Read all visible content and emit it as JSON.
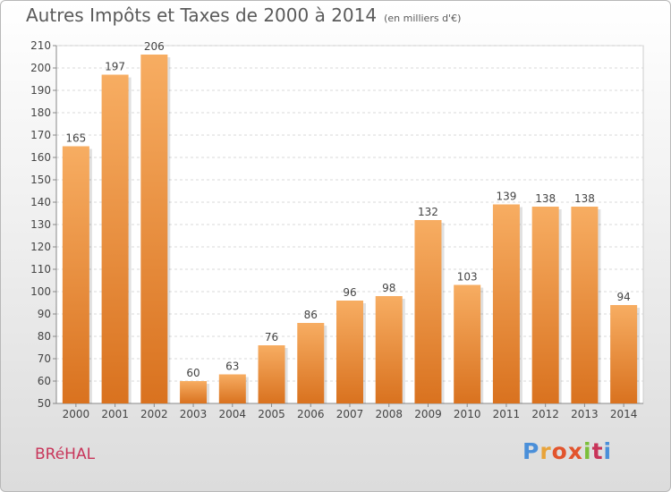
{
  "chart_data": {
    "type": "bar",
    "title": "Autres Impôts et Taxes de 2000 à 2014",
    "subtitle": "(en milliers d'€)",
    "categories": [
      "2000",
      "2001",
      "2002",
      "2003",
      "2004",
      "2005",
      "2006",
      "2007",
      "2008",
      "2009",
      "2010",
      "2011",
      "2012",
      "2013",
      "2014"
    ],
    "values": [
      165,
      197,
      206,
      60,
      63,
      76,
      86,
      96,
      98,
      132,
      103,
      139,
      138,
      138,
      94
    ],
    "ylim": [
      50,
      210
    ],
    "yticks": [
      50,
      60,
      70,
      80,
      90,
      100,
      110,
      120,
      130,
      140,
      150,
      160,
      170,
      180,
      190,
      200,
      210
    ],
    "grid": true,
    "colors": {
      "bar": "#f39a45",
      "bar_light": "#f7ad62",
      "bar_dark": "#d9721f",
      "grid": "#d8d8d8",
      "text": "#444444"
    }
  },
  "commune": "BRéHAL",
  "logo": {
    "letters": [
      "P",
      "r",
      "o",
      "x",
      "i",
      "t",
      "i"
    ],
    "colors": [
      "#4a8fd9",
      "#e8a33a",
      "#e2542d",
      "#e2542d",
      "#7bbf3a",
      "#c8355a",
      "#4a8fd9"
    ]
  }
}
